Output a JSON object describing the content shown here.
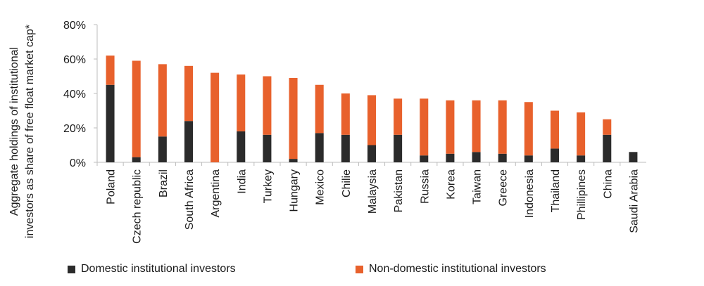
{
  "chart_data": {
    "type": "bar",
    "stacked": true,
    "title": "",
    "xlabel": "",
    "ylabel": "Aggregate holdings of institutional investors as share of free float market cap*",
    "ylabel_lines": [
      "Aggregate holdings of institutional",
      "investors as share of free float market cap*"
    ],
    "ylim": [
      0,
      80
    ],
    "yticks": [
      0,
      20,
      40,
      60,
      80
    ],
    "ytick_labels": [
      "0%",
      "20%",
      "40%",
      "60%",
      "80%"
    ],
    "grid": false,
    "legend_position": "bottom",
    "categories": [
      "Poland",
      "Czech republic",
      "Brazil",
      "South Africa",
      "Argentina",
      "India",
      "Turkey",
      "Hungary",
      "Mexico",
      "Chilie",
      "Malaysia",
      "Pakistan",
      "Russia",
      "Korea",
      "Taiwan",
      "Greece",
      "Indonesia",
      "Thailand",
      "Phillipines",
      "China",
      "Saudi Arabia"
    ],
    "series": [
      {
        "name": "Domestic institutional investors",
        "color": "#2b2b2b",
        "values": [
          45,
          3,
          15,
          24,
          0,
          18,
          16,
          2,
          17,
          16,
          10,
          16,
          4,
          5,
          6,
          5,
          4,
          8,
          4,
          16,
          6
        ]
      },
      {
        "name": "Non-domestic institutional investors",
        "color": "#e8612c",
        "values": [
          17,
          56,
          42,
          32,
          52,
          33,
          34,
          47,
          28,
          24,
          29,
          21,
          33,
          31,
          30,
          31,
          31,
          22,
          25,
          9,
          0
        ]
      }
    ]
  }
}
